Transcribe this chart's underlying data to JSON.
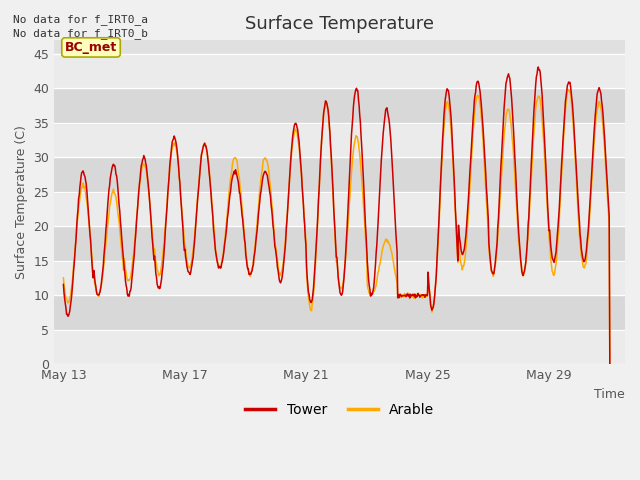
{
  "title": "Surface Temperature",
  "xlabel": "Time",
  "ylabel": "Surface Temperature (C)",
  "ylim": [
    0,
    47
  ],
  "yticks": [
    0,
    5,
    10,
    15,
    20,
    25,
    30,
    35,
    40,
    45
  ],
  "xtick_labels": [
    "May 13",
    "May 17",
    "May 21",
    "May 25",
    "May 29"
  ],
  "xtick_positions": [
    0,
    4,
    8,
    12,
    16
  ],
  "xlim": [
    -0.3,
    18.5
  ],
  "tower_color": "#cc0000",
  "arable_color": "#ffaa00",
  "annotation_text": "No data for f_IRT0_a\nNo data for f_IRT0_b",
  "bc_met_label": "BC_met",
  "legend_tower": "Tower",
  "legend_arable": "Arable",
  "fig_facecolor": "#f0f0f0",
  "plot_bg_color": "#e0e0e0",
  "band_light": "#ebebeb",
  "band_dark": "#d8d8d8",
  "title_fontsize": 13,
  "label_fontsize": 9,
  "tick_fontsize": 9,
  "annotation_fontsize": 8,
  "day_peaks_tower": [
    28,
    29,
    30,
    33,
    32,
    28,
    28,
    35,
    38,
    40,
    37,
    10,
    40,
    41,
    42,
    43,
    41,
    40
  ],
  "day_peaks_arable": [
    26,
    25,
    29,
    32,
    32,
    30,
    30,
    34,
    38,
    33,
    18,
    10,
    38,
    39,
    37,
    39,
    40,
    38
  ],
  "day_mins_tower": [
    7,
    10,
    10,
    11,
    13,
    14,
    13,
    12,
    9,
    10,
    10,
    10,
    8,
    16,
    13,
    13,
    15,
    15
  ],
  "day_mins_arable": [
    9,
    10,
    12,
    13,
    14,
    14,
    13,
    13,
    8,
    11,
    10,
    10,
    8,
    14,
    13,
    13,
    13,
    14
  ],
  "n_days": 18,
  "pts_per_day": 48
}
